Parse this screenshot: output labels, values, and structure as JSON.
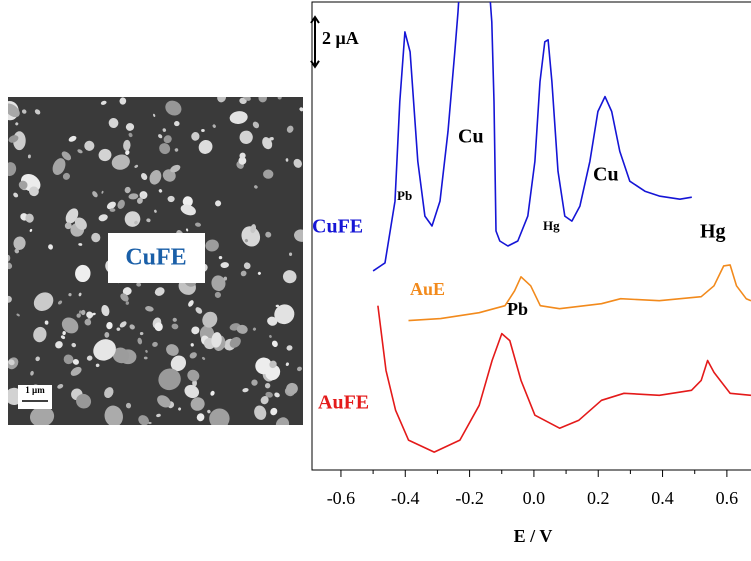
{
  "chart_data": {
    "type": "line",
    "xlabel": "E / V",
    "xlim": [
      -0.69,
      0.675
    ],
    "xticks": [
      -0.6,
      -0.4,
      -0.2,
      {
        "value": 0,
        "label": "0.0"
      },
      0.2,
      0.4,
      0.6
    ],
    "ylim": [
      0,
      18.8
    ],
    "scale_bar": {
      "value": 2,
      "label": "2 μA"
    },
    "series": [
      {
        "name": "CuFE",
        "color": "#1515d6",
        "x": [
          -0.5,
          -0.463,
          -0.432,
          -0.417,
          -0.401,
          -0.385,
          -0.361,
          -0.339,
          -0.317,
          -0.292,
          -0.267,
          -0.246,
          -0.236,
          -0.23,
          -0.14,
          -0.131,
          -0.124,
          -0.118,
          -0.106,
          -0.081,
          -0.05,
          -0.019,
          0.003,
          0.019,
          0.034,
          0.044,
          0.056,
          0.075,
          0.096,
          0.118,
          0.143,
          0.174,
          0.199,
          0.221,
          0.242,
          0.267,
          0.298,
          0.345,
          0.392,
          0.454,
          0.491
        ],
        "values": [
          8.0,
          8.32,
          10.8,
          14.8,
          17.6,
          16.8,
          12.4,
          10.2,
          9.8,
          10.8,
          13.6,
          16.8,
          18.4,
          19.6,
          19.6,
          18.0,
          14.8,
          9.6,
          9.2,
          9.0,
          9.2,
          10.2,
          12.4,
          15.6,
          17.2,
          17.28,
          15.6,
          12.0,
          10.2,
          10.0,
          10.6,
          12.4,
          14.4,
          15.0,
          14.4,
          12.8,
          11.6,
          11.2,
          11.0,
          10.88,
          10.96
        ]
      },
      {
        "name": "AuE",
        "color": "#f28a1c",
        "x": [
          -0.39,
          -0.29,
          -0.17,
          -0.09,
          -0.06,
          -0.04,
          -0.01,
          0.02,
          0.08,
          0.21,
          0.27,
          0.39,
          0.52,
          0.56,
          0.59,
          0.61,
          0.63,
          0.66,
          0.675
        ],
        "values": [
          6.0,
          6.08,
          6.32,
          6.6,
          7.2,
          7.76,
          7.4,
          6.6,
          6.48,
          6.68,
          6.88,
          6.8,
          6.96,
          7.4,
          8.2,
          8.24,
          7.4,
          6.88,
          6.8
        ]
      },
      {
        "name": "AuFE",
        "color": "#e41a1a",
        "x": [
          -0.485,
          -0.46,
          -0.43,
          -0.39,
          -0.31,
          -0.23,
          -0.17,
          -0.13,
          -0.1,
          -0.075,
          -0.04,
          0.003,
          0.08,
          0.14,
          0.21,
          0.28,
          0.39,
          0.49,
          0.52,
          0.54,
          0.56,
          0.61,
          0.675
        ],
        "values": [
          6.6,
          4.0,
          2.4,
          1.2,
          0.72,
          1.2,
          2.6,
          4.4,
          5.48,
          5.2,
          3.6,
          2.2,
          1.68,
          2.0,
          2.8,
          3.08,
          3.0,
          3.2,
          3.6,
          4.4,
          3.92,
          3.08,
          3.0
        ]
      }
    ],
    "annotations": [
      "Pb",
      "Cu",
      "Hg",
      "Cu",
      "Hg",
      "Pb"
    ]
  },
  "image": {
    "label": "CuFE",
    "scale_bar": "1 µm"
  }
}
